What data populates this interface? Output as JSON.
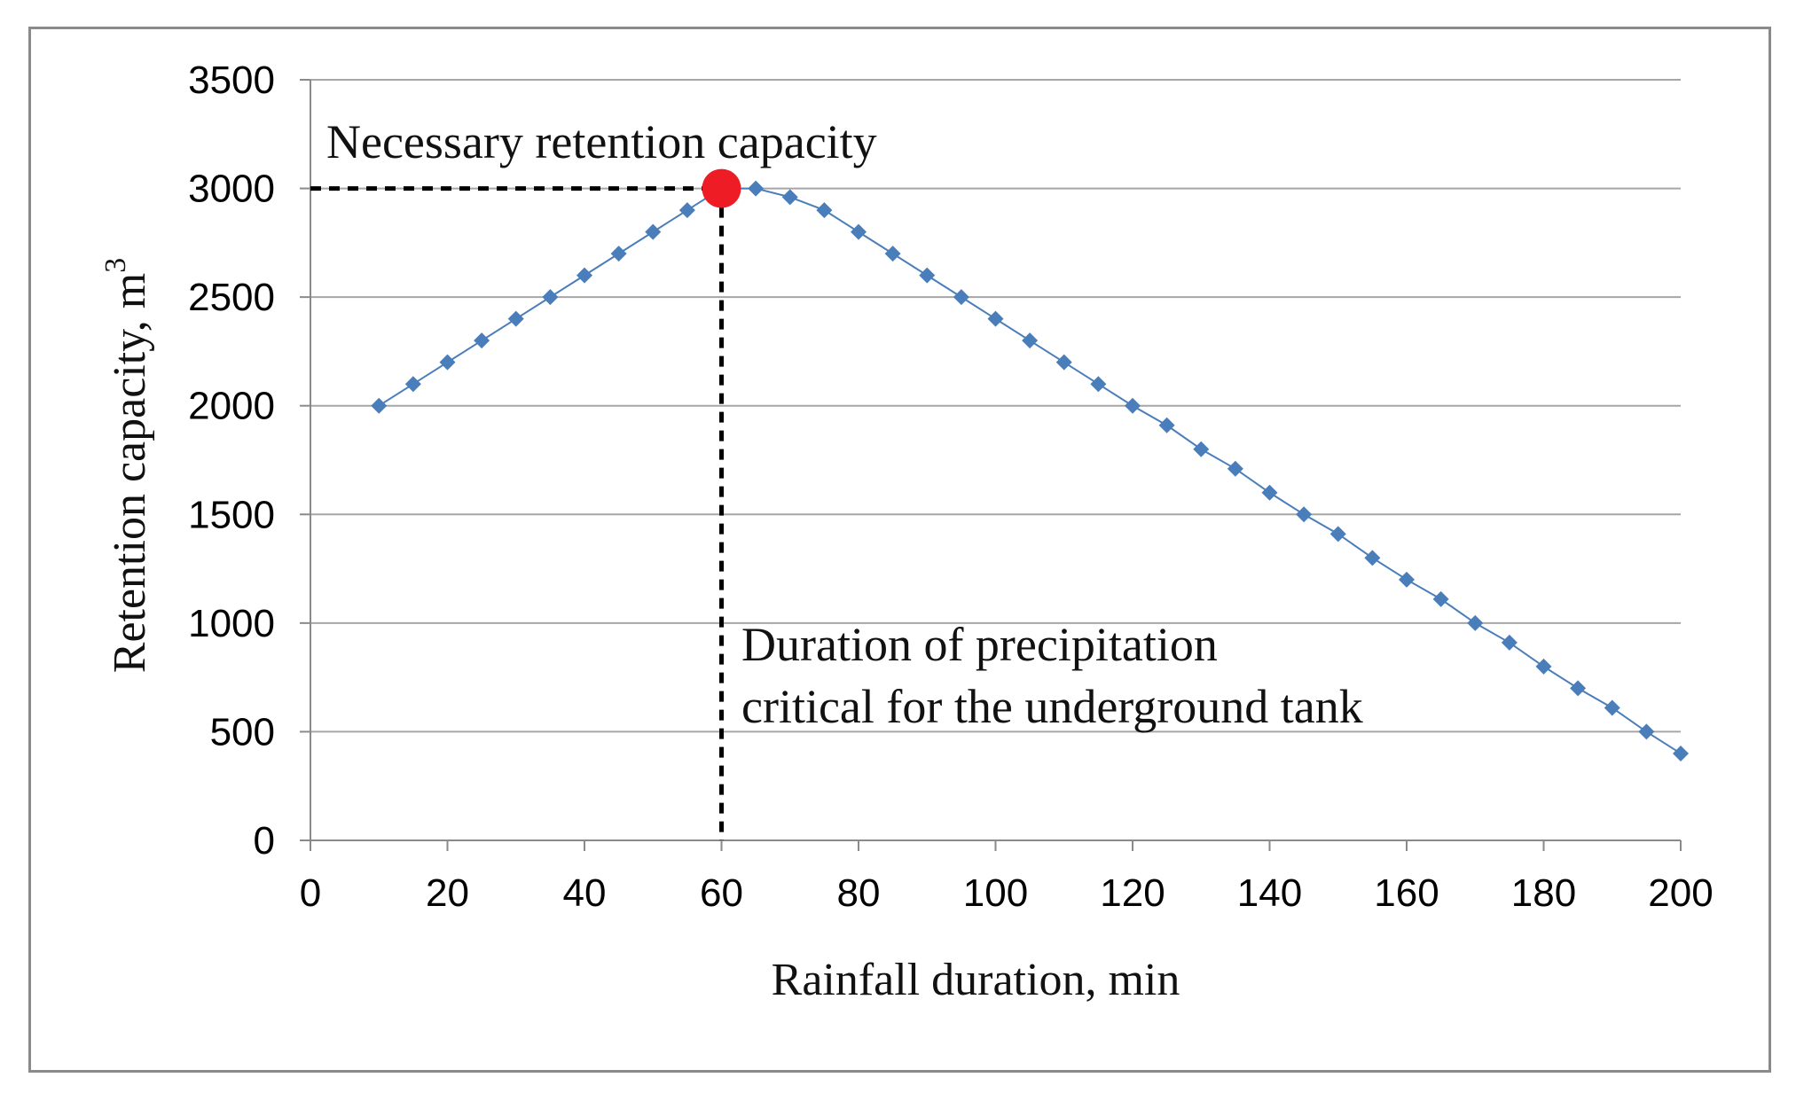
{
  "chart_data": {
    "type": "line",
    "title": "",
    "xlabel": "Rainfall duration, min",
    "ylabel": "Retention capacity, m",
    "ylabel_superscript": "3",
    "xlim": [
      0,
      200
    ],
    "ylim": [
      0,
      3500
    ],
    "x_ticks": [
      "0",
      "20",
      "40",
      "60",
      "80",
      "100",
      "120",
      "140",
      "160",
      "180",
      "200"
    ],
    "y_ticks": [
      "0",
      "500",
      "1000",
      "1500",
      "2000",
      "2500",
      "3000",
      "3500"
    ],
    "grid": "horizontal",
    "series": [
      {
        "name": "Retention capacity",
        "color": "#4a7ebb",
        "marker": "diamond",
        "x": [
          10,
          15,
          20,
          25,
          30,
          35,
          40,
          45,
          50,
          55,
          60,
          65,
          70,
          75,
          80,
          85,
          90,
          95,
          100,
          105,
          110,
          115,
          120,
          125,
          130,
          135,
          140,
          145,
          150,
          155,
          160,
          165,
          170,
          175,
          180,
          185,
          190,
          195,
          200
        ],
        "y": [
          2000,
          2100,
          2200,
          2300,
          2400,
          2500,
          2600,
          2700,
          2800,
          2900,
          3000,
          3000,
          2960,
          2900,
          2800,
          2700,
          2600,
          2500,
          2400,
          2300,
          2200,
          2100,
          2000,
          1910,
          1800,
          1710,
          1600,
          1500,
          1410,
          1300,
          1200,
          1110,
          1000,
          910,
          800,
          700,
          610,
          500,
          400
        ]
      }
    ],
    "highlight_point": {
      "x": 60,
      "y": 3000,
      "color": "#ee1c25"
    },
    "annotations": {
      "necessary_capacity": "Necessary retention capacity",
      "duration_line1": "Duration of precipitation",
      "duration_line2": "critical for the underground tank"
    }
  }
}
